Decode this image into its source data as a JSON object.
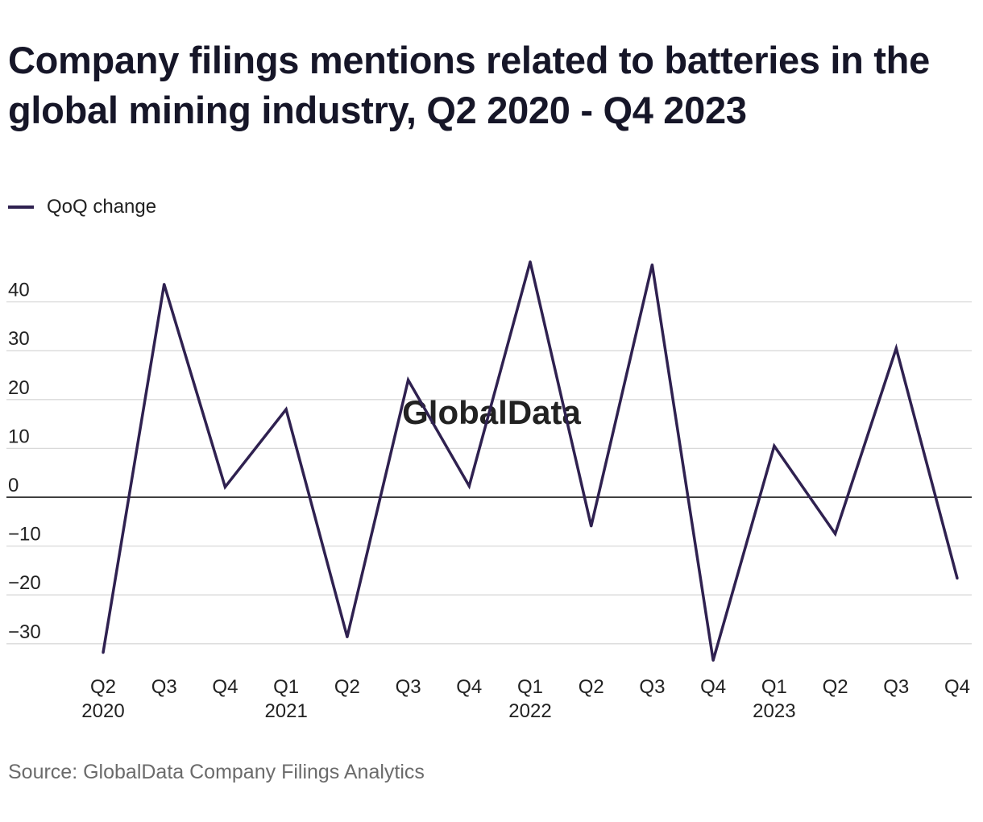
{
  "title": "Company filings mentions related to batteries in the global mining industry, Q2 2020 - Q4 2023",
  "source": "Source: GlobalData Company Filings Analytics",
  "watermark": "GlobalData",
  "legend": {
    "label": "QoQ change"
  },
  "colors": {
    "series": "#2f2150",
    "grid": "#d9d9d9",
    "zero_line": "#000000",
    "source_text": "#6b6b6b"
  },
  "chart_data": {
    "type": "line",
    "title": "Company filings mentions related to batteries in the global mining industry, Q2 2020 - Q4 2023",
    "xlabel": "",
    "ylabel": "",
    "categories": [
      "Q2 2020",
      "Q3 2020",
      "Q4 2020",
      "Q1 2021",
      "Q2 2021",
      "Q3 2021",
      "Q4 2021",
      "Q1 2022",
      "Q2 2022",
      "Q3 2022",
      "Q4 2022",
      "Q1 2023",
      "Q2 2023",
      "Q3 2023",
      "Q4 2023"
    ],
    "tick_labels": [
      {
        "quarter": "Q2",
        "year": "2020"
      },
      {
        "quarter": "Q3",
        "year": ""
      },
      {
        "quarter": "Q4",
        "year": ""
      },
      {
        "quarter": "Q1",
        "year": "2021"
      },
      {
        "quarter": "Q2",
        "year": ""
      },
      {
        "quarter": "Q3",
        "year": ""
      },
      {
        "quarter": "Q4",
        "year": ""
      },
      {
        "quarter": "Q1",
        "year": "2022"
      },
      {
        "quarter": "Q2",
        "year": ""
      },
      {
        "quarter": "Q3",
        "year": ""
      },
      {
        "quarter": "Q4",
        "year": ""
      },
      {
        "quarter": "Q1",
        "year": "2023"
      },
      {
        "quarter": "Q2",
        "year": ""
      },
      {
        "quarter": "Q3",
        "year": ""
      },
      {
        "quarter": "Q4",
        "year": ""
      }
    ],
    "series": [
      {
        "name": "QoQ change",
        "values": [
          -31.8,
          43.6,
          2.1,
          18.0,
          -28.6,
          24.0,
          2.3,
          48.2,
          -5.9,
          47.6,
          -33.4,
          10.5,
          -7.5,
          30.5,
          -16.6
        ]
      }
    ],
    "yticks": [
      40,
      30,
      20,
      10,
      0,
      -10,
      -20,
      -30
    ],
    "ytick_labels": [
      "40",
      "30",
      "20",
      "10",
      "0",
      "−10",
      "−20",
      "−30"
    ],
    "ylim": [
      -36,
      52
    ],
    "grid": true,
    "legend_position": "top-left"
  }
}
